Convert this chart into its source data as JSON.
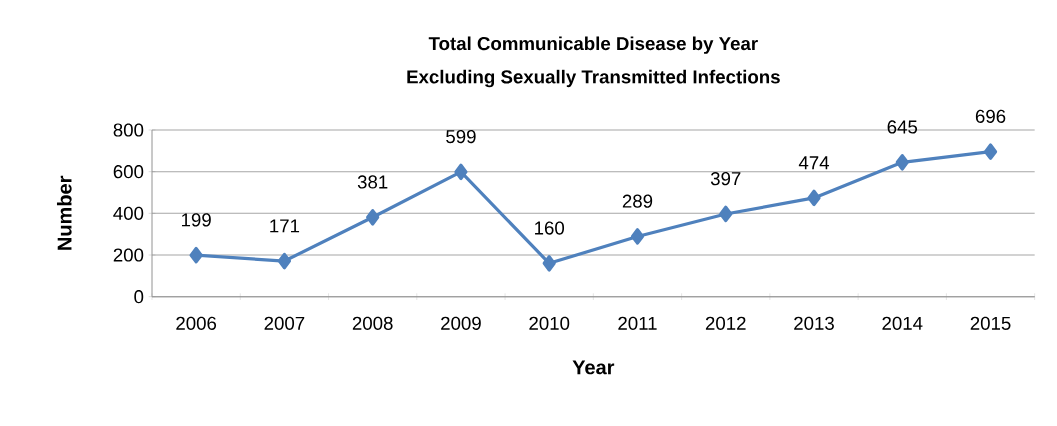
{
  "chart_data": {
    "type": "line",
    "title": "Total Communicable Disease by Year",
    "subtitle": "Excluding Sexually Transmitted Infections",
    "xlabel": "Year",
    "ylabel": "Number",
    "categories": [
      "2006",
      "2007",
      "2008",
      "2009",
      "2010",
      "2011",
      "2012",
      "2013",
      "2014",
      "2015"
    ],
    "values": [
      199,
      171,
      381,
      599,
      160,
      289,
      397,
      474,
      645,
      696
    ],
    "color": "#4f81bd",
    "marker": "diamond",
    "line_style": "solid",
    "data_labels": true,
    "grid": "y",
    "ylim": [
      0,
      800
    ],
    "yticks": [
      0,
      200,
      400,
      600,
      800
    ]
  }
}
